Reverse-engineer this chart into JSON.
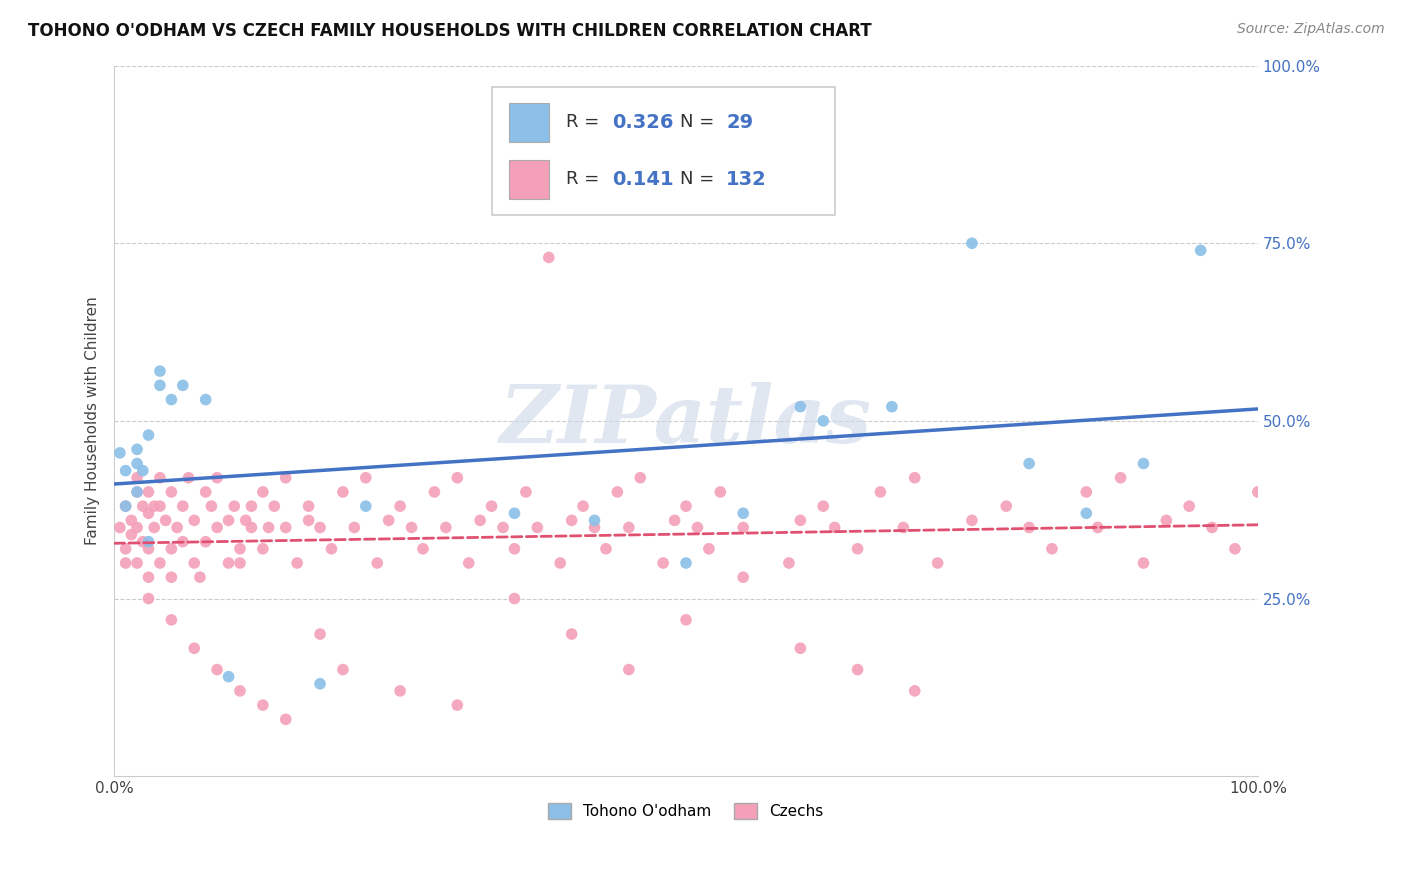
{
  "title": "TOHONO O'ODHAM VS CZECH FAMILY HOUSEHOLDS WITH CHILDREN CORRELATION CHART",
  "source": "Source: ZipAtlas.com",
  "ylabel": "Family Households with Children",
  "legend_label1": "Tohono O'odham",
  "legend_label2": "Czechs",
  "R1": 0.326,
  "N1": 29,
  "R2": 0.141,
  "N2": 132,
  "color1": "#8bbfe8",
  "color2": "#f4a0b8",
  "line_color1": "#4472c4",
  "line_color2": "#e05070",
  "watermark": "ZIPatlas",
  "xlim": [
    0.0,
    1.0
  ],
  "ylim": [
    0.0,
    1.0
  ],
  "tohono_x": [
    0.005,
    0.01,
    0.01,
    0.02,
    0.02,
    0.02,
    0.025,
    0.03,
    0.03,
    0.04,
    0.04,
    0.05,
    0.06,
    0.08,
    0.1,
    0.18,
    0.22,
    0.35,
    0.42,
    0.5,
    0.55,
    0.6,
    0.62,
    0.68,
    0.75,
    0.8,
    0.85,
    0.9,
    0.95
  ],
  "tohono_y": [
    0.455,
    0.43,
    0.38,
    0.44,
    0.46,
    0.4,
    0.43,
    0.33,
    0.48,
    0.55,
    0.57,
    0.53,
    0.55,
    0.53,
    0.14,
    0.13,
    0.38,
    0.37,
    0.36,
    0.3,
    0.37,
    0.52,
    0.5,
    0.52,
    0.75,
    0.44,
    0.37,
    0.44,
    0.74
  ],
  "czech_x": [
    0.005,
    0.01,
    0.01,
    0.01,
    0.015,
    0.015,
    0.02,
    0.02,
    0.02,
    0.02,
    0.025,
    0.025,
    0.03,
    0.03,
    0.03,
    0.03,
    0.035,
    0.035,
    0.04,
    0.04,
    0.04,
    0.045,
    0.05,
    0.05,
    0.05,
    0.055,
    0.06,
    0.06,
    0.065,
    0.07,
    0.07,
    0.075,
    0.08,
    0.08,
    0.085,
    0.09,
    0.09,
    0.1,
    0.1,
    0.105,
    0.11,
    0.11,
    0.115,
    0.12,
    0.12,
    0.13,
    0.13,
    0.135,
    0.14,
    0.15,
    0.15,
    0.16,
    0.17,
    0.17,
    0.18,
    0.19,
    0.2,
    0.21,
    0.22,
    0.23,
    0.24,
    0.25,
    0.26,
    0.27,
    0.28,
    0.29,
    0.3,
    0.31,
    0.32,
    0.33,
    0.34,
    0.35,
    0.36,
    0.37,
    0.38,
    0.39,
    0.4,
    0.41,
    0.42,
    0.43,
    0.44,
    0.45,
    0.46,
    0.48,
    0.49,
    0.5,
    0.51,
    0.52,
    0.53,
    0.55,
    0.57,
    0.59,
    0.6,
    0.62,
    0.63,
    0.65,
    0.67,
    0.69,
    0.7,
    0.72,
    0.75,
    0.78,
    0.8,
    0.82,
    0.85,
    0.86,
    0.88,
    0.9,
    0.92,
    0.94,
    0.96,
    0.98,
    1.0,
    0.03,
    0.05,
    0.07,
    0.09,
    0.11,
    0.13,
    0.15,
    0.18,
    0.2,
    0.25,
    0.3,
    0.35,
    0.4,
    0.45,
    0.5,
    0.55,
    0.6,
    0.65,
    0.7
  ],
  "czech_y": [
    0.35,
    0.32,
    0.38,
    0.3,
    0.36,
    0.34,
    0.4,
    0.35,
    0.42,
    0.3,
    0.38,
    0.33,
    0.37,
    0.32,
    0.4,
    0.28,
    0.35,
    0.38,
    0.38,
    0.42,
    0.3,
    0.36,
    0.32,
    0.4,
    0.28,
    0.35,
    0.38,
    0.33,
    0.42,
    0.3,
    0.36,
    0.28,
    0.4,
    0.33,
    0.38,
    0.35,
    0.42,
    0.3,
    0.36,
    0.38,
    0.32,
    0.3,
    0.36,
    0.38,
    0.35,
    0.32,
    0.4,
    0.35,
    0.38,
    0.35,
    0.42,
    0.3,
    0.36,
    0.38,
    0.35,
    0.32,
    0.4,
    0.35,
    0.42,
    0.3,
    0.36,
    0.38,
    0.35,
    0.32,
    0.4,
    0.35,
    0.42,
    0.3,
    0.36,
    0.38,
    0.35,
    0.32,
    0.4,
    0.35,
    0.73,
    0.3,
    0.36,
    0.38,
    0.35,
    0.32,
    0.4,
    0.35,
    0.42,
    0.3,
    0.36,
    0.38,
    0.35,
    0.32,
    0.4,
    0.35,
    0.87,
    0.3,
    0.36,
    0.38,
    0.35,
    0.32,
    0.4,
    0.35,
    0.42,
    0.3,
    0.36,
    0.38,
    0.35,
    0.32,
    0.4,
    0.35,
    0.42,
    0.3,
    0.36,
    0.38,
    0.35,
    0.32,
    0.4,
    0.25,
    0.22,
    0.18,
    0.15,
    0.12,
    0.1,
    0.08,
    0.2,
    0.15,
    0.12,
    0.1,
    0.25,
    0.2,
    0.15,
    0.22,
    0.28,
    0.18,
    0.15,
    0.12
  ]
}
